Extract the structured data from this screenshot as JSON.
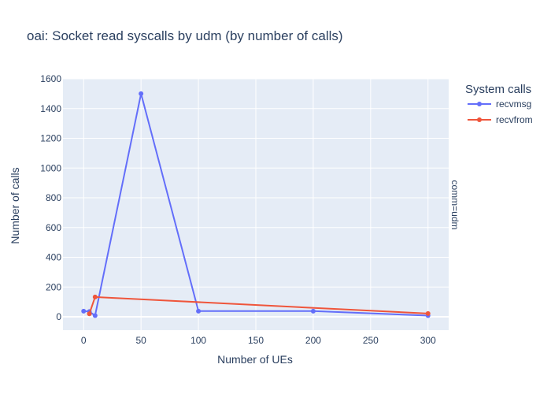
{
  "chart_data": {
    "type": "line",
    "title": "oai: Socket read syscalls by udm (by number of calls)",
    "xlabel": "Number of UEs",
    "ylabel": "Number of calls",
    "facet_label": "comm=udm",
    "legend_title": "System calls",
    "legend_position": "top-right",
    "grid": true,
    "xlim": [
      -18,
      318
    ],
    "ylim": [
      -90,
      1600
    ],
    "xticks": [
      0,
      50,
      100,
      150,
      200,
      250,
      300
    ],
    "yticks": [
      0,
      200,
      400,
      600,
      800,
      1000,
      1200,
      1400,
      1600
    ],
    "series": [
      {
        "name": "recvmsg",
        "color": "#636efa",
        "points": [
          {
            "x": 0,
            "y": 38
          },
          {
            "x": 5,
            "y": 35
          },
          {
            "x": 10,
            "y": 8
          },
          {
            "x": 50,
            "y": 1500
          },
          {
            "x": 100,
            "y": 38
          },
          {
            "x": 200,
            "y": 38
          },
          {
            "x": 300,
            "y": 8
          }
        ]
      },
      {
        "name": "recvfrom",
        "color": "#ef553b",
        "points": [
          {
            "x": 5,
            "y": 20
          },
          {
            "x": 10,
            "y": 133
          },
          {
            "x": 300,
            "y": 22
          }
        ]
      }
    ]
  },
  "colors": {
    "plot_background": "#e5ecf6",
    "grid": "#ffffff",
    "text": "#2a3f5f"
  }
}
